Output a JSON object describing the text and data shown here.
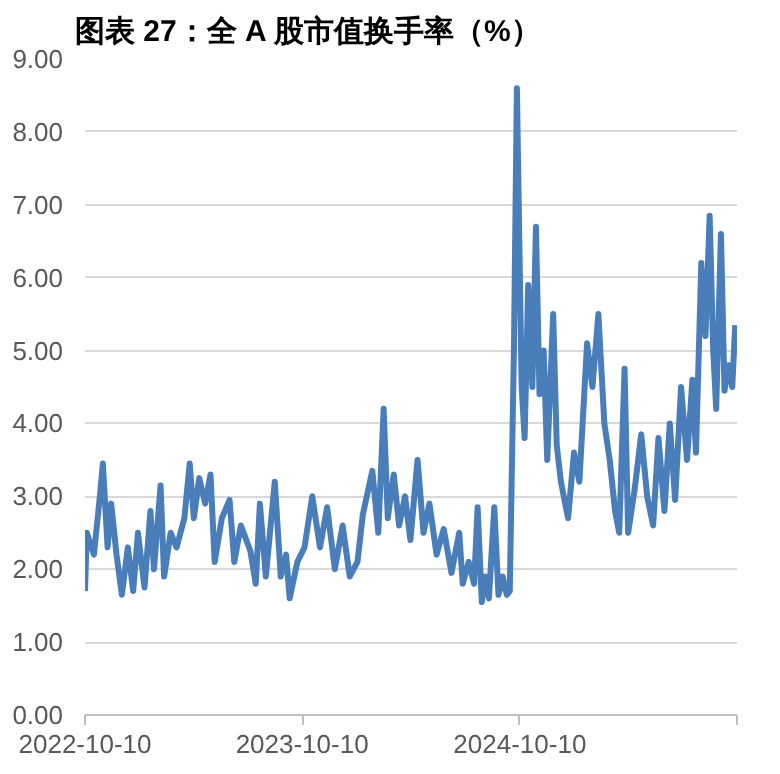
{
  "chart_data": {
    "type": "line",
    "title": "图表 27：全 A 股市值换手率（%）",
    "x": [
      "2022-10-10",
      "2022-10-13",
      "2022-10-25",
      "2022-11-04",
      "2022-11-09",
      "2022-11-17",
      "2022-11-23",
      "2022-12-02",
      "2022-12-11",
      "2022-12-21",
      "2022-12-30",
      "2023-01-07",
      "2023-01-18",
      "2023-01-28",
      "2023-02-03",
      "2023-02-14",
      "2023-02-20",
      "2023-03-03",
      "2023-03-13",
      "2023-03-26",
      "2023-04-04",
      "2023-04-11",
      "2023-04-20",
      "2023-04-30",
      "2023-05-09",
      "2023-05-16",
      "2023-05-28",
      "2023-06-10",
      "2023-06-18",
      "2023-06-29",
      "2023-07-15",
      "2023-07-24",
      "2023-07-31",
      "2023-08-10",
      "2023-08-25",
      "2023-09-04",
      "2023-09-13",
      "2023-09-19",
      "2023-10-02",
      "2023-10-14",
      "2023-10-27",
      "2023-11-09",
      "2023-11-21",
      "2023-12-04",
      "2023-12-17",
      "2023-12-29",
      "2024-01-11",
      "2024-01-20",
      "2024-02-05",
      "2024-02-15",
      "2024-02-24",
      "2024-03-02",
      "2024-03-12",
      "2024-03-21",
      "2024-03-31",
      "2024-04-09",
      "2024-04-21",
      "2024-05-01",
      "2024-05-11",
      "2024-05-23",
      "2024-06-04",
      "2024-06-17",
      "2024-06-30",
      "2024-07-06",
      "2024-07-16",
      "2024-07-25",
      "2024-07-31",
      "2024-08-07",
      "2024-08-13",
      "2024-08-19",
      "2024-08-28",
      "2024-09-04",
      "2024-09-11",
      "2024-09-18",
      "2024-09-23",
      "2024-09-30",
      "2024-10-05",
      "2024-10-13",
      "2024-10-18",
      "2024-10-24",
      "2024-10-31",
      "2024-11-06",
      "2024-11-12",
      "2024-11-19",
      "2024-11-25",
      "2024-12-05",
      "2024-12-11",
      "2024-12-18",
      "2024-12-30",
      "2025-01-09",
      "2025-01-18",
      "2025-01-31",
      "2025-02-09",
      "2025-02-19",
      "2025-03-01",
      "2025-03-10",
      "2025-03-19",
      "2025-03-26",
      "2025-04-04",
      "2025-04-10",
      "2025-04-21",
      "2025-05-02",
      "2025-05-12",
      "2025-05-22",
      "2025-05-31",
      "2025-06-10",
      "2025-06-19",
      "2025-06-28",
      "2025-07-08",
      "2025-07-18",
      "2025-07-27",
      "2025-08-02",
      "2025-08-11",
      "2025-08-18",
      "2025-08-25",
      "2025-08-31",
      "2025-09-05",
      "2025-09-13",
      "2025-09-19",
      "2025-09-26",
      "2025-10-02",
      "2025-10-07"
    ],
    "series": [
      {
        "color": "#4a7ebb",
        "values": [
          1.7,
          2.5,
          2.2,
          3.0,
          3.45,
          2.3,
          2.9,
          2.2,
          1.65,
          2.3,
          1.7,
          2.5,
          1.75,
          2.8,
          2.0,
          3.15,
          1.9,
          2.5,
          2.3,
          2.7,
          3.45,
          2.7,
          3.25,
          2.9,
          3.3,
          2.1,
          2.7,
          2.95,
          2.1,
          2.6,
          2.25,
          1.8,
          2.9,
          1.9,
          3.2,
          1.9,
          2.2,
          1.6,
          2.1,
          2.3,
          3.0,
          2.3,
          2.85,
          2.0,
          2.6,
          1.9,
          2.1,
          2.75,
          3.35,
          2.5,
          4.2,
          2.7,
          3.3,
          2.6,
          3.0,
          2.4,
          3.5,
          2.5,
          2.9,
          2.2,
          2.55,
          1.95,
          2.5,
          1.8,
          2.1,
          1.8,
          2.85,
          1.55,
          1.9,
          1.6,
          2.85,
          1.65,
          1.9,
          1.65,
          1.7,
          5.0,
          8.6,
          4.5,
          3.8,
          5.9,
          4.5,
          6.7,
          4.4,
          5.0,
          3.5,
          5.5,
          3.7,
          3.2,
          2.7,
          3.6,
          3.2,
          5.1,
          4.5,
          5.5,
          4.0,
          3.5,
          2.8,
          2.5,
          4.75,
          2.5,
          3.1,
          3.85,
          3.0,
          2.6,
          3.8,
          2.8,
          4.0,
          2.95,
          4.5,
          3.5,
          4.6,
          3.6,
          6.2,
          5.2,
          6.85,
          5.0,
          4.2,
          6.6,
          4.45,
          4.8,
          4.5,
          5.35
        ]
      }
    ],
    "xlim": [
      "2022-10-10",
      "2025-10-10"
    ],
    "xticks": [
      "2022-10-10",
      "2023-10-10",
      "2024-10-10",
      {
        "value": "2025-10-10",
        "label": null
      }
    ],
    "ylim": [
      0,
      9
    ],
    "yticks": [
      {
        "value": 0,
        "label": "0.00"
      },
      {
        "value": 1,
        "label": "1.00"
      },
      {
        "value": 2,
        "label": "2.00"
      },
      {
        "value": 3,
        "label": "3.00"
      },
      {
        "value": 4,
        "label": "4.00"
      },
      {
        "value": 5,
        "label": "5.00"
      },
      {
        "value": 6,
        "label": "6.00"
      },
      {
        "value": 7,
        "label": "7.00"
      },
      {
        "value": 8,
        "label": "8.00"
      },
      {
        "value": 9,
        "label": "9.00"
      }
    ],
    "grid": "y",
    "line_style": "solid",
    "marker": "none"
  }
}
